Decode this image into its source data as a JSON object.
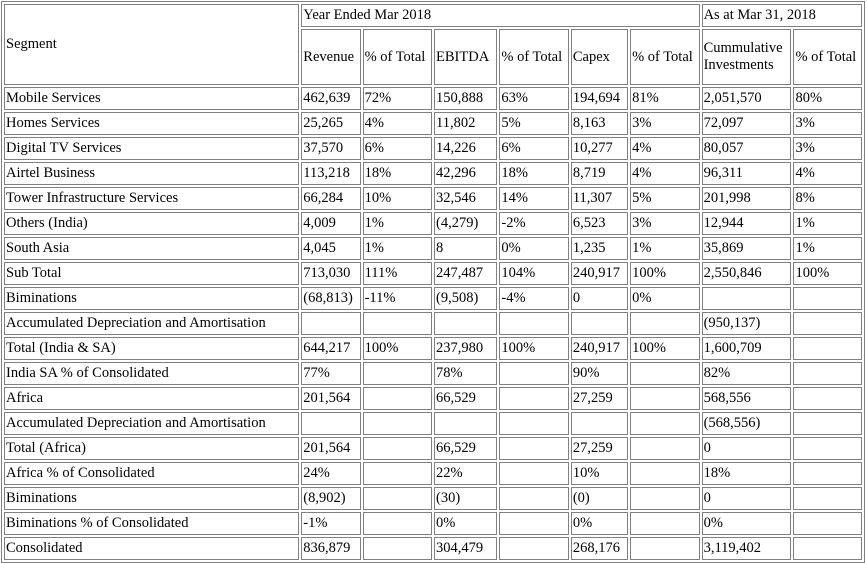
{
  "header": {
    "segment": "Segment",
    "year_group": "Year Ended Mar 2018",
    "asat_group": "As at Mar 31, 2018",
    "revenue": "Revenue",
    "pct_total_1": "% of Total",
    "ebitda": "EBITDA",
    "pct_total_2": "% of Total",
    "capex": "Capex",
    "pct_total_3": "% of Total",
    "cumul_line1": "Cummulative",
    "cumul_line2": "Investments",
    "pct_total_4": "% of Total"
  },
  "rows": [
    [
      "Mobile Services",
      "462,639",
      "72%",
      "150,888",
      "63%",
      "194,694",
      "81%",
      "2,051,570",
      "80%"
    ],
    [
      "Homes Services",
      "25,265",
      "4%",
      "11,802",
      "5%",
      "8,163",
      "3%",
      "72,097",
      "3%"
    ],
    [
      "Digital TV Services",
      "37,570",
      "6%",
      "14,226",
      "6%",
      "10,277",
      "4%",
      "80,057",
      "3%"
    ],
    [
      "Airtel Business",
      "113,218",
      "18%",
      "42,296",
      "18%",
      "8,719",
      "4%",
      "96,311",
      "4%"
    ],
    [
      "Tower Infrastructure Services",
      "66,284",
      "10%",
      "32,546",
      "14%",
      "11,307",
      "5%",
      "201,998",
      "8%"
    ],
    [
      "Others (India)",
      "4,009",
      "1%",
      "(4,279)",
      "-2%",
      "6,523",
      "3%",
      "12,944",
      "1%"
    ],
    [
      "South Asia",
      "4,045",
      "1%",
      "8",
      "0%",
      "1,235",
      "1%",
      "35,869",
      "1%"
    ],
    [
      "Sub Total",
      "713,030",
      "111%",
      "247,487",
      "104%",
      "240,917",
      "100%",
      "2,550,846",
      "100%"
    ],
    [
      "Biminations",
      "(68,813)",
      "-11%",
      "(9,508)",
      "-4%",
      "0",
      "0%",
      "",
      ""
    ],
    [
      "Accumulated Depreciation and Amortisation",
      "",
      "",
      "",
      "",
      "",
      "",
      "(950,137)",
      ""
    ],
    [
      "Total (India & SA)",
      "644,217",
      "100%",
      "237,980",
      "100%",
      "240,917",
      "100%",
      "1,600,709",
      ""
    ],
    [
      "India SA % of Consolidated",
      "77%",
      "",
      "78%",
      "",
      "90%",
      "",
      "82%",
      ""
    ],
    [
      "Africa",
      "201,564",
      "",
      "66,529",
      "",
      "27,259",
      "",
      "568,556",
      ""
    ],
    [
      "Accumulated Depreciation and Amortisation",
      "",
      "",
      "",
      "",
      "",
      "",
      "(568,556)",
      ""
    ],
    [
      "Total (Africa)",
      "201,564",
      "",
      "66,529",
      "",
      "27,259",
      "",
      "0",
      ""
    ],
    [
      "Africa % of Consolidated",
      "24%",
      "",
      "22%",
      "",
      "10%",
      "",
      "18%",
      ""
    ],
    [
      "Biminations",
      "(8,902)",
      "",
      "(30)",
      "",
      "(0)",
      "",
      "0",
      ""
    ],
    [
      "Biminations % of Consolidated",
      "-1%",
      "",
      "0%",
      "",
      "0%",
      "",
      "0%",
      ""
    ],
    [
      "Consolidated",
      "836,879",
      "",
      "304,479",
      "",
      "268,176",
      "",
      "3,119,402",
      ""
    ]
  ]
}
